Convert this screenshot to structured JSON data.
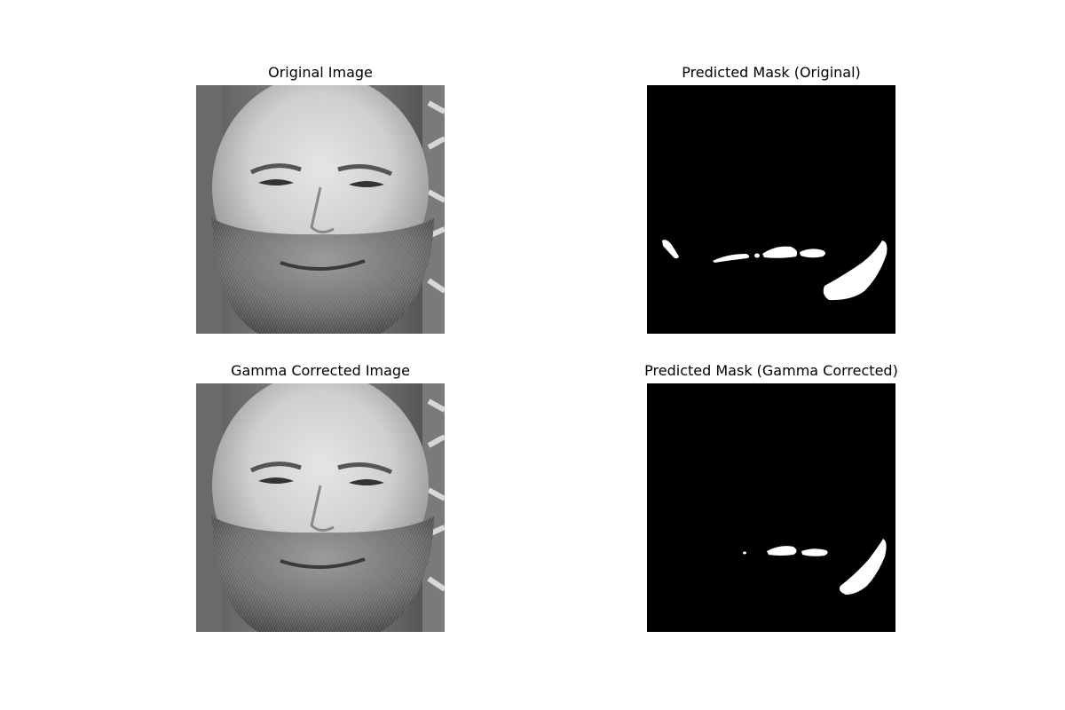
{
  "panels": [
    {
      "title": "Original Image",
      "content": "grayscale-face-photo"
    },
    {
      "title": "Predicted Mask (Original)",
      "content": "binary-segmentation-mask"
    },
    {
      "title": "Gamma Corrected Image",
      "content": "grayscale-face-photo"
    },
    {
      "title": "Predicted Mask (Gamma Corrected)",
      "content": "binary-segmentation-mask"
    }
  ],
  "colors": {
    "mask_background": "#000000",
    "mask_foreground": "#ffffff"
  }
}
